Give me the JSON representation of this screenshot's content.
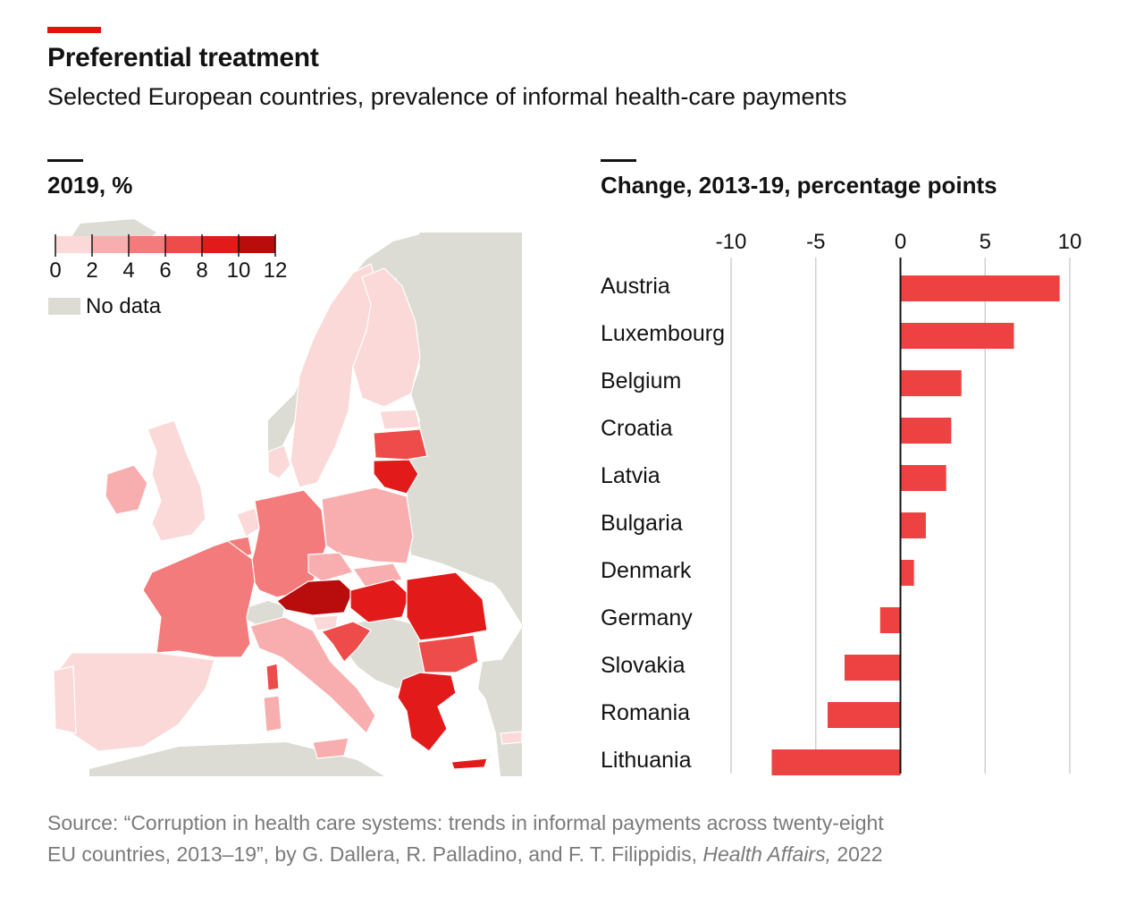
{
  "header": {
    "title": "Preferential treatment",
    "subtitle": "Selected European countries, prevalence of informal health-care payments"
  },
  "map": {
    "title": "2019, %",
    "legend": {
      "ticks": [
        "0",
        "2",
        "4",
        "6",
        "8",
        "10",
        "12"
      ],
      "colors": [
        "#fbd9d9",
        "#f8aeae",
        "#f37b7b",
        "#ee4b4b",
        "#e31a1a",
        "#b90d0d"
      ],
      "no_data_label": "No data",
      "no_data_color": "#dcdcd4"
    }
  },
  "chart_data": {
    "type": "bar",
    "orientation": "horizontal",
    "title": "Change, 2013-19, percentage points",
    "xlim": [
      -10,
      10
    ],
    "xticks": [
      -10,
      -5,
      0,
      5,
      10
    ],
    "xtick_labels": [
      "-10",
      "-5",
      "0",
      "5",
      "10"
    ],
    "grid": true,
    "color": "#ee4242",
    "categories": [
      "Austria",
      "Luxembourg",
      "Belgium",
      "Croatia",
      "Latvia",
      "Bulgaria",
      "Denmark",
      "Germany",
      "Slovakia",
      "Romania",
      "Lithuania"
    ],
    "values": [
      9.4,
      6.7,
      3.6,
      3.0,
      2.7,
      1.5,
      0.8,
      -1.2,
      -3.3,
      -4.3,
      -7.6
    ]
  },
  "source": {
    "line1": "Source: “Corruption in health care systems: trends in informal payments across twenty-eight",
    "line2_prefix": "EU countries, 2013–19”, by G. Dallera, R. Palladino, and F. T. Filippidis, ",
    "line2_italic": "Health Affairs,",
    "line2_suffix": " 2022"
  }
}
